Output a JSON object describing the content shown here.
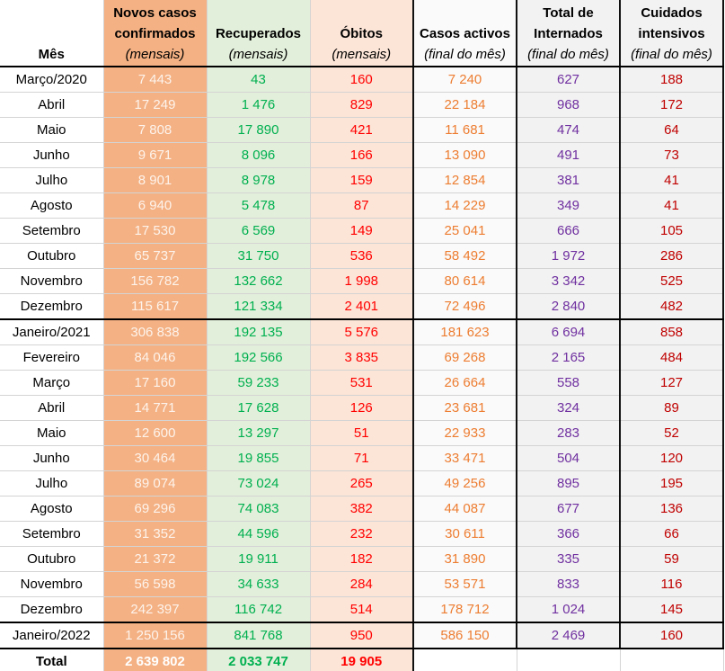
{
  "headers": {
    "month": "Mês",
    "new_cases": {
      "title1": "Novos casos",
      "title2": "confirmados",
      "sub": "(mensais)"
    },
    "recovered": {
      "title": "Recuperados",
      "sub": "(mensais)"
    },
    "deaths": {
      "title": "Óbitos",
      "sub": "(mensais)"
    },
    "active": {
      "title": "Casos activos",
      "sub": "(final do mês)"
    },
    "hospitalized": {
      "title1": "Total de",
      "title2": "Internados",
      "sub": "(final do mês)"
    },
    "icu": {
      "title1": "Cuidados",
      "title2": "intensivos",
      "sub": "(final do mês)"
    }
  },
  "colors": {
    "new_cases_bg": "#f4b183",
    "recovered_bg": "#e2efda",
    "deaths_bg": "#fce4d6",
    "recovered_text": "#00b050",
    "deaths_text": "#ff0000",
    "active_text": "#ed7d31",
    "hospitalized_text": "#7030a0",
    "icu_text": "#c00000"
  },
  "rows": [
    [
      "Março/2020",
      "7 443",
      "43",
      "160",
      "7 240",
      "627",
      "188"
    ],
    [
      "Abril",
      "17 249",
      "1 476",
      "829",
      "22 184",
      "968",
      "172"
    ],
    [
      "Maio",
      "7 808",
      "17 890",
      "421",
      "11 681",
      "474",
      "64"
    ],
    [
      "Junho",
      "9 671",
      "8 096",
      "166",
      "13 090",
      "491",
      "73"
    ],
    [
      "Julho",
      "8 901",
      "8 978",
      "159",
      "12 854",
      "381",
      "41"
    ],
    [
      "Agosto",
      "6 940",
      "5 478",
      "87",
      "14 229",
      "349",
      "41"
    ],
    [
      "Setembro",
      "17 530",
      "6 569",
      "149",
      "25 041",
      "666",
      "105"
    ],
    [
      "Outubro",
      "65 737",
      "31 750",
      "536",
      "58 492",
      "1 972",
      "286"
    ],
    [
      "Novembro",
      "156 782",
      "132 662",
      "1 998",
      "80 614",
      "3 342",
      "525"
    ],
    [
      "Dezembro",
      "115 617",
      "121 334",
      "2 401",
      "72 496",
      "2 840",
      "482"
    ],
    [
      "Janeiro/2021",
      "306 838",
      "192 135",
      "5 576",
      "181 623",
      "6 694",
      "858"
    ],
    [
      "Fevereiro",
      "84 046",
      "192 566",
      "3 835",
      "69 268",
      "2 165",
      "484"
    ],
    [
      "Março",
      "17 160",
      "59 233",
      "531",
      "26 664",
      "558",
      "127"
    ],
    [
      "Abril",
      "14 771",
      "17 628",
      "126",
      "23 681",
      "324",
      "89"
    ],
    [
      "Maio",
      "12 600",
      "13 297",
      "51",
      "22 933",
      "283",
      "52"
    ],
    [
      "Junho",
      "30 464",
      "19 855",
      "71",
      "33 471",
      "504",
      "120"
    ],
    [
      "Julho",
      "89 074",
      "73 024",
      "265",
      "49 256",
      "895",
      "195"
    ],
    [
      "Agosto",
      "69 296",
      "74 083",
      "382",
      "44 087",
      "677",
      "136"
    ],
    [
      "Setembro",
      "31 352",
      "44 596",
      "232",
      "30 611",
      "366",
      "66"
    ],
    [
      "Outubro",
      "21 372",
      "19 911",
      "182",
      "31 890",
      "335",
      "59"
    ],
    [
      "Novembro",
      "56 598",
      "34 633",
      "284",
      "53 571",
      "833",
      "116"
    ],
    [
      "Dezembro",
      "242 397",
      "116 742",
      "514",
      "178 712",
      "1 024",
      "145"
    ],
    [
      "Janeiro/2022",
      "1 250 156",
      "841 768",
      "950",
      "586 150",
      "2 469",
      "160"
    ]
  ],
  "total": {
    "label": "Total",
    "new_cases": "2 639 802",
    "recovered": "2 033 747",
    "deaths": "19 905"
  }
}
